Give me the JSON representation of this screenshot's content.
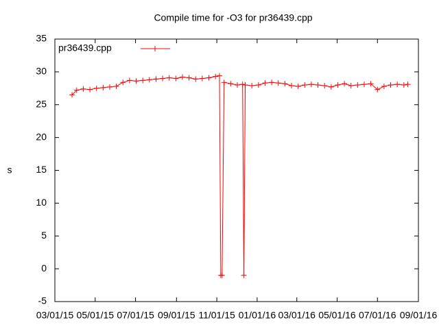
{
  "chart_data": {
    "type": "line",
    "title": "Compile time for -O3 for pr36439.cpp",
    "y_label": "s",
    "legend": "top-left",
    "xlim": [
      "2015-03-01",
      "2016-09-01"
    ],
    "xticks": [
      {
        "value": "2015-03-01",
        "label": "03/01/15"
      },
      {
        "value": "2015-05-01",
        "label": "05/01/15"
      },
      {
        "value": "2015-07-01",
        "label": "07/01/15"
      },
      {
        "value": "2015-09-01",
        "label": "09/01/15"
      },
      {
        "value": "2015-11-01",
        "label": "11/01/15"
      },
      {
        "value": "2016-01-01",
        "label": "01/01/16"
      },
      {
        "value": "2016-03-01",
        "label": "03/01/16"
      },
      {
        "value": "2016-05-01",
        "label": "05/01/16"
      },
      {
        "value": "2016-07-01",
        "label": "07/01/16"
      },
      {
        "value": "2016-09-01",
        "label": "09/01/16"
      }
    ],
    "ylim": [
      -5,
      35
    ],
    "yticks": [
      -5,
      0,
      5,
      10,
      15,
      20,
      25,
      30,
      35
    ],
    "x": [
      "2015-03-27",
      "2015-04-03",
      "2015-04-13",
      "2015-04-23",
      "2015-05-03",
      "2015-05-13",
      "2015-05-23",
      "2015-06-02",
      "2015-06-12",
      "2015-06-22",
      "2015-07-02",
      "2015-07-12",
      "2015-07-22",
      "2015-08-01",
      "2015-08-11",
      "2015-08-21",
      "2015-08-31",
      "2015-09-10",
      "2015-09-20",
      "2015-09-30",
      "2015-10-10",
      "2015-10-20",
      "2015-10-30",
      "2015-11-05",
      "2015-11-07",
      "2015-11-09",
      "2015-11-12",
      "2015-11-22",
      "2015-12-02",
      "2015-12-10",
      "2015-12-12",
      "2015-12-14",
      "2015-12-24",
      "2016-01-03",
      "2016-01-13",
      "2016-01-23",
      "2016-02-02",
      "2016-02-12",
      "2016-02-22",
      "2016-03-03",
      "2016-03-13",
      "2016-03-23",
      "2016-04-02",
      "2016-04-12",
      "2016-04-22",
      "2016-05-02",
      "2016-05-12",
      "2016-05-22",
      "2016-06-01",
      "2016-06-11",
      "2016-06-21",
      "2016-07-01",
      "2016-07-11",
      "2016-07-21",
      "2016-07-31",
      "2016-08-10",
      "2016-08-16"
    ],
    "series": [
      {
        "name": "pr36439.cpp",
        "color": "#ff0000",
        "values": [
          26.5,
          27.2,
          27.4,
          27.3,
          27.5,
          27.6,
          27.7,
          27.8,
          28.4,
          28.7,
          28.6,
          28.7,
          28.8,
          28.9,
          29.0,
          29.1,
          29.0,
          29.2,
          29.1,
          28.9,
          29.0,
          29.1,
          29.3,
          29.4,
          -1,
          -1,
          28.4,
          28.2,
          28.0,
          28.1,
          -1,
          28.0,
          27.9,
          28.0,
          28.3,
          28.4,
          28.3,
          28.2,
          27.9,
          27.8,
          28.0,
          28.1,
          28.0,
          27.9,
          27.7,
          28.0,
          28.2,
          27.9,
          28.0,
          28.1,
          28.2,
          27.3,
          27.8,
          28.0,
          28.1,
          28.0,
          28.1
        ]
      }
    ]
  }
}
